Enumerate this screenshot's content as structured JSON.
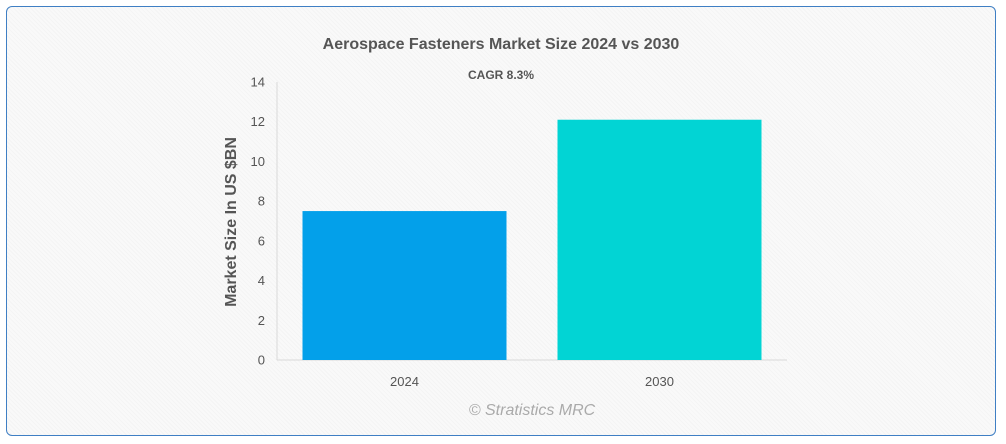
{
  "chart_data": {
    "type": "bar",
    "title": "Aerospace Fasteners Market Size 2024 vs 2030",
    "subtitle": "CAGR 8.3%",
    "xlabel": "",
    "ylabel": "Market Size In US $BN",
    "categories": [
      "2024",
      "2030"
    ],
    "values": [
      7.5,
      12.1
    ],
    "colors": [
      "#03a0ea",
      "#02d4d4"
    ],
    "ylim": [
      0,
      14
    ],
    "yticks": [
      0,
      2,
      4,
      6,
      8,
      10,
      12,
      14
    ],
    "grid": false,
    "legend": "none"
  },
  "credit": "© Stratistics MRC"
}
